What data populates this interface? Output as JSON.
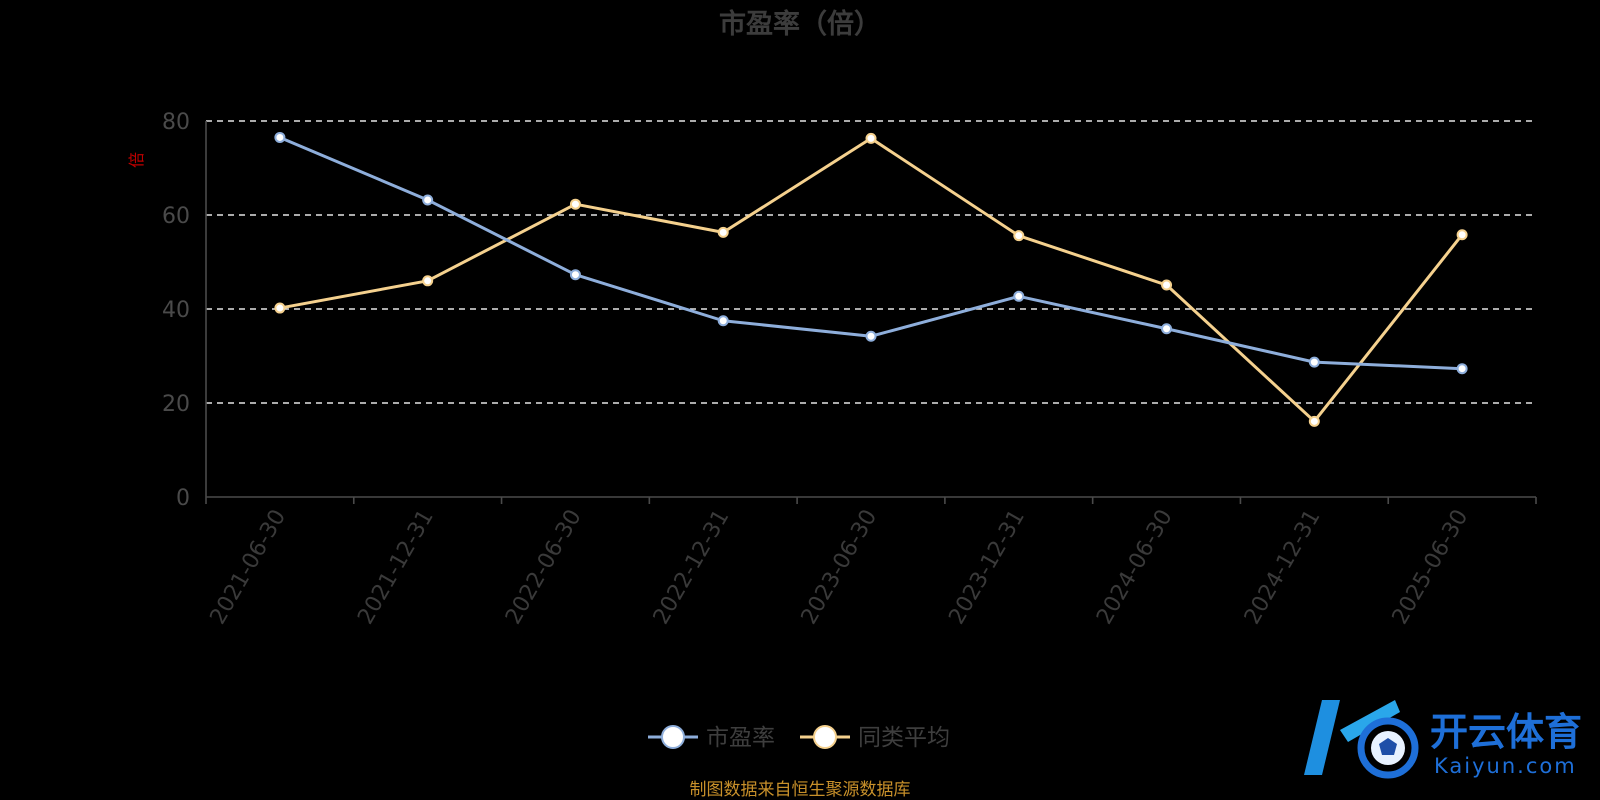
{
  "chart_data": {
    "type": "line",
    "title": "市盈率（倍）",
    "ylabel": "倍",
    "categories": [
      "2021-06-30",
      "2021-12-31",
      "2022-06-30",
      "2022-12-31",
      "2023-06-30",
      "2023-12-31",
      "2024-06-30",
      "2024-12-31",
      "2025-06-30"
    ],
    "ylim": [
      0,
      80
    ],
    "yticks": [
      0,
      20,
      40,
      60,
      80
    ],
    "grid": true,
    "legend_position": "bottom",
    "series": [
      {
        "name": "市盈率",
        "color": "#8eaedb",
        "values": [
          76.5,
          63.2,
          47.3,
          37.5,
          34.2,
          42.7,
          35.8,
          28.7,
          27.3
        ]
      },
      {
        "name": "同类平均",
        "color": "#f5d18e",
        "values": [
          40.2,
          46.0,
          62.3,
          56.3,
          76.3,
          55.6,
          45.1,
          16.1,
          55.8
        ]
      }
    ]
  },
  "source_note": "制图数据来自恒生聚源数据库",
  "watermark": {
    "name": "开云体育",
    "domain": "Kaiyun.com",
    "brand_color": "#1e6fd8"
  }
}
